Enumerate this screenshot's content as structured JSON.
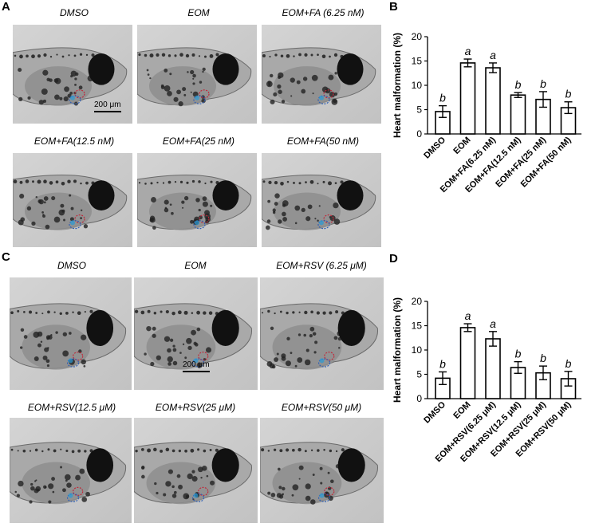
{
  "panels": {
    "A": {
      "letter": "A",
      "images": [
        {
          "caption": "DMSO"
        },
        {
          "caption": "EOM"
        },
        {
          "caption": "EOM+FA (6.25 nM)"
        },
        {
          "caption": "EOM+FA(12.5 nM)"
        },
        {
          "caption": "EOM+FA(25 nM)"
        },
        {
          "caption": "EOM+FA(50 nM)"
        }
      ],
      "scale_bar": "200 μm"
    },
    "B": {
      "letter": "B"
    },
    "C": {
      "letter": "C",
      "images": [
        {
          "caption": "DMSO"
        },
        {
          "caption": "EOM"
        },
        {
          "caption": "EOM+RSV (6.25 μM)"
        },
        {
          "caption": "EOM+RSV(12.5 μM)"
        },
        {
          "caption": "EOM+RSV(25 μM)"
        },
        {
          "caption": "EOM+RSV(50 μM)"
        }
      ],
      "scale_bar": "200 μm"
    },
    "D": {
      "letter": "D"
    }
  },
  "colors": {
    "bar_fill": "#ffffff",
    "bar_stroke": "#000000",
    "circle_red": "#c0283a",
    "circle_blue": "#2f5fb4",
    "cell_tint": "#2a9ad6"
  },
  "chart_data": [
    {
      "type": "bar",
      "panel": "B",
      "categories": [
        "DMSO",
        "EOM",
        "EOM+FA(6.25 nM)",
        "EOM+FA(12.5 nM)",
        "EOM+FA(25 nM)",
        "EOM+FA(50 nM)"
      ],
      "values": [
        4.6,
        14.6,
        13.6,
        8.0,
        7.1,
        5.4
      ],
      "errors": [
        1.2,
        0.8,
        1.0,
        0.5,
        1.6,
        1.2
      ],
      "significance": [
        "b",
        "a",
        "a",
        "b",
        "b",
        "b"
      ],
      "ylabel": "Heart malformation (%)",
      "ylim": [
        0,
        20
      ],
      "yticks": [
        "0",
        "5",
        "10",
        "15",
        "20"
      ]
    },
    {
      "type": "bar",
      "panel": "D",
      "categories": [
        "DMSO",
        "EOM",
        "EOM+RSV(6.25 μM)",
        "EOM+RSV(12.5 μM)",
        "EOM+RSV(25 μM)",
        "EOM+RSV(50 μM)"
      ],
      "values": [
        4.2,
        14.6,
        12.3,
        6.4,
        5.3,
        4.1
      ],
      "errors": [
        1.3,
        0.8,
        1.5,
        1.2,
        1.4,
        1.5
      ],
      "significance": [
        "b",
        "a",
        "a",
        "b",
        "b",
        "b"
      ],
      "ylabel": "Heart malformation (%)",
      "ylim": [
        0,
        20
      ],
      "yticks": [
        "0",
        "5",
        "10",
        "15",
        "20"
      ]
    }
  ]
}
